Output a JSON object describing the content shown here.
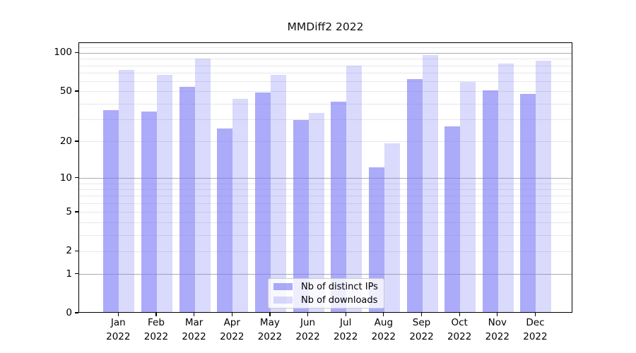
{
  "chart_data": {
    "type": "bar",
    "title": "MMDiff2 2022",
    "categories": [
      "Jan",
      "Feb",
      "Mar",
      "Apr",
      "May",
      "Jun",
      "Jul",
      "Aug",
      "Sep",
      "Oct",
      "Nov",
      "Dec"
    ],
    "category_year": "2022",
    "series": [
      {
        "name": "Nb of distinct IPs",
        "values": [
          35,
          34,
          53,
          25,
          48,
          29,
          41,
          12,
          61,
          26,
          50,
          47
        ],
        "color": "rgba(120,120,245,0.62)",
        "color_hex": "#a9a9f7"
      },
      {
        "name": "Nb of downloads",
        "values": [
          72,
          66,
          89,
          43,
          66,
          33,
          78,
          19,
          94,
          58,
          81,
          85
        ],
        "color": "rgba(120,120,245,0.27)",
        "color_hex": "#dcdcfa"
      }
    ],
    "yscale": "log1p",
    "ylim": [
      0,
      120
    ],
    "yticks": [
      0,
      1,
      2,
      5,
      10,
      20,
      50,
      100
    ],
    "major_gridlines": [
      1,
      10,
      100
    ],
    "minor_gridlines": [
      2,
      3,
      4,
      5,
      6,
      7,
      8,
      9,
      20,
      30,
      40,
      50,
      60,
      70,
      80,
      90,
      110
    ],
    "grid": true,
    "legend_position": "lower center",
    "colors": {
      "major_grid": "#ababab",
      "minor_grid": "#e7e7ee",
      "axis": "#000000",
      "text": "#000000",
      "legend_border": "#cccccc",
      "legend_bg": "rgba(255,255,255,0.8)"
    }
  }
}
